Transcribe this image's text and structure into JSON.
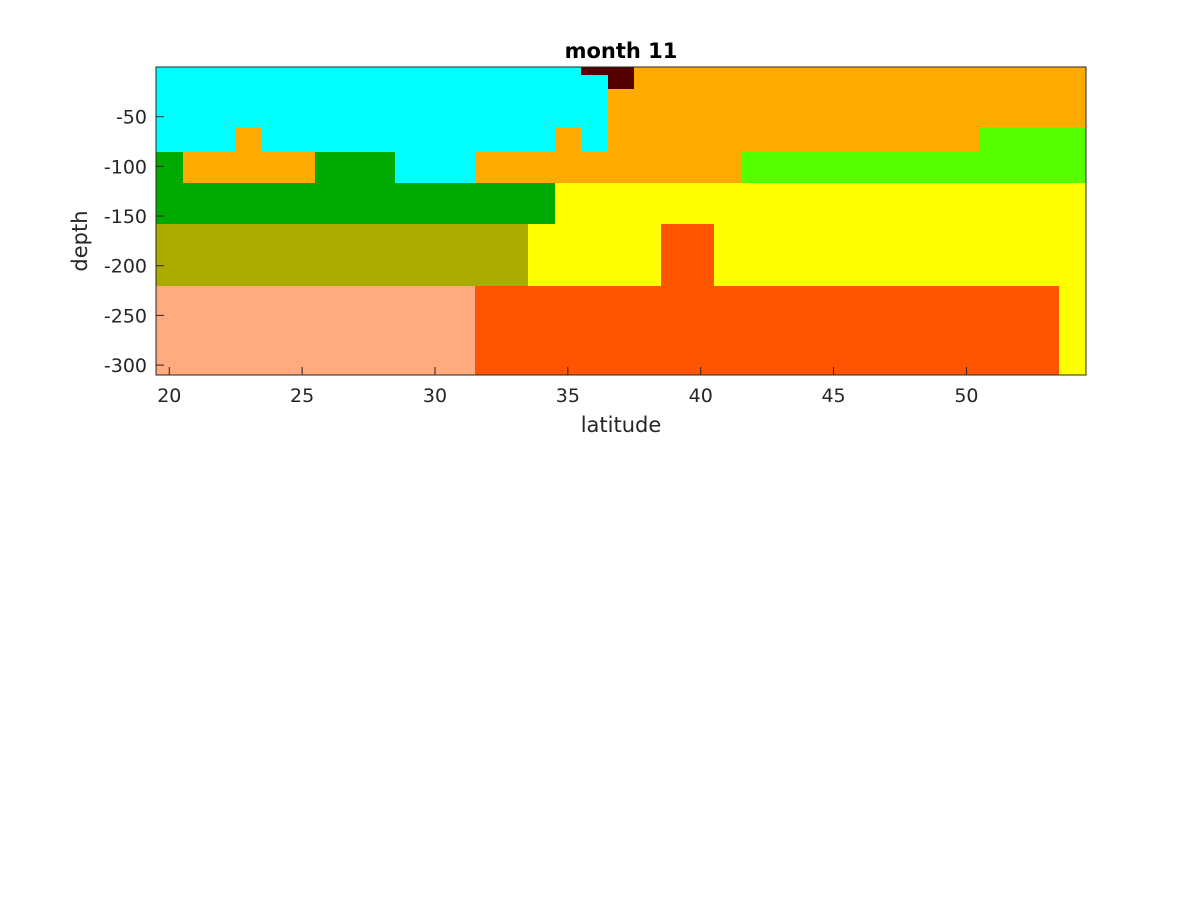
{
  "chart_data": {
    "type": "heatmap",
    "title": "month 11",
    "xlabel": "latitude",
    "ylabel": "depth",
    "xlim": [
      19.5,
      54.5
    ],
    "ylim": [
      -310,
      0
    ],
    "xticks": [
      20,
      25,
      30,
      35,
      40,
      45,
      50
    ],
    "yticks": [
      -300,
      -250,
      -200,
      -150,
      -100,
      -50
    ],
    "grid": false,
    "colorbar": false,
    "colors": {
      "cyan": "#00ffff",
      "orange": "#ffaa00",
      "dark_red": "#550000",
      "green": "#00aa00",
      "lime": "#55ff00",
      "yellow": "#ffff00",
      "olive": "#aaaa00",
      "salmon": "#ffaa7f",
      "red_orange": "#ff5500"
    },
    "regions": [
      {
        "color": "cyan",
        "x": [
          19.5,
          36.5
        ],
        "y": [
          -86,
          0
        ]
      },
      {
        "color": "cyan",
        "x": [
          28.5,
          31.5
        ],
        "y": [
          -117,
          -86
        ]
      },
      {
        "color": "orange",
        "x": [
          36.5,
          54.5
        ],
        "y": [
          -86,
          0
        ]
      },
      {
        "color": "orange",
        "x": [
          20.5,
          25.5
        ],
        "y": [
          -117,
          -86
        ]
      },
      {
        "color": "orange",
        "x": [
          22.5,
          23.5
        ],
        "y": [
          -86,
          -60
        ]
      },
      {
        "color": "orange",
        "x": [
          31.5,
          41.5
        ],
        "y": [
          -117,
          -86
        ]
      },
      {
        "color": "orange",
        "x": [
          34.5,
          35.5
        ],
        "y": [
          -86,
          -60
        ]
      },
      {
        "color": "dark_red",
        "x": [
          35.5,
          37.5
        ],
        "y": [
          -8,
          0
        ]
      },
      {
        "color": "dark_red",
        "x": [
          36.5,
          37.5
        ],
        "y": [
          -22,
          -8
        ]
      },
      {
        "color": "green",
        "x": [
          19.5,
          20.5
        ],
        "y": [
          -117,
          -86
        ]
      },
      {
        "color": "green",
        "x": [
          25.5,
          28.5
        ],
        "y": [
          -117,
          -86
        ]
      },
      {
        "color": "green",
        "x": [
          19.5,
          34.5
        ],
        "y": [
          -158,
          -117
        ]
      },
      {
        "color": "lime",
        "x": [
          41.5,
          54.5
        ],
        "y": [
          -117,
          -86
        ]
      },
      {
        "color": "lime",
        "x": [
          50.5,
          54.5
        ],
        "y": [
          -86,
          -60
        ]
      },
      {
        "color": "yellow",
        "x": [
          34.5,
          54.5
        ],
        "y": [
          -158,
          -117
        ]
      },
      {
        "color": "yellow",
        "x": [
          33.5,
          54.5
        ],
        "y": [
          -220,
          -158
        ]
      },
      {
        "color": "yellow",
        "x": [
          53.5,
          54.5
        ],
        "y": [
          -310,
          -220
        ]
      },
      {
        "color": "olive",
        "x": [
          19.5,
          33.5
        ],
        "y": [
          -220,
          -158
        ]
      },
      {
        "color": "red_orange",
        "x": [
          38.5,
          40.5
        ],
        "y": [
          -220,
          -158
        ]
      },
      {
        "color": "red_orange",
        "x": [
          31.5,
          53.5
        ],
        "y": [
          -310,
          -220
        ]
      },
      {
        "color": "salmon",
        "x": [
          19.5,
          31.5
        ],
        "y": [
          -310,
          -220
        ]
      }
    ]
  }
}
